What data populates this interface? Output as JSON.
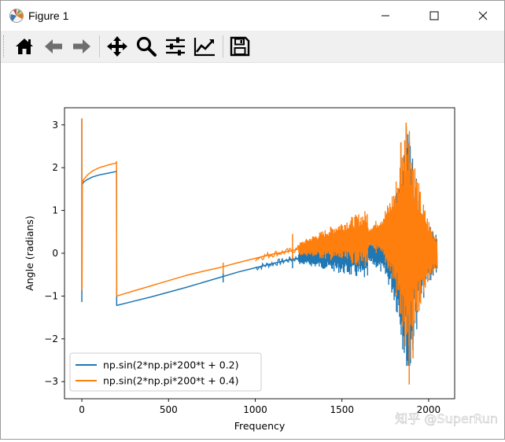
{
  "window": {
    "title": "Figure 1",
    "controls": [
      "minimize",
      "maximize",
      "close"
    ]
  },
  "toolbar": {
    "buttons": [
      {
        "name": "home",
        "icon": "home-icon"
      },
      {
        "name": "back",
        "icon": "arrow-left-icon"
      },
      {
        "name": "forward",
        "icon": "arrow-right-icon"
      },
      {
        "name": "pan",
        "icon": "move-icon"
      },
      {
        "name": "zoom",
        "icon": "magnifier-icon"
      },
      {
        "name": "configure-subplots",
        "icon": "sliders-icon"
      },
      {
        "name": "edit-axis",
        "icon": "line-chart-icon"
      },
      {
        "name": "save",
        "icon": "floppy-disk-icon"
      }
    ]
  },
  "watermark": "知乎 @SuperRun",
  "chart_data": {
    "type": "line",
    "title": "",
    "xlabel": "Frequency",
    "ylabel": "Angle (radians)",
    "xlim": [
      -100,
      2150
    ],
    "ylim": [
      -3.4,
      3.4
    ],
    "xticks": [
      0,
      500,
      1000,
      1500,
      2000
    ],
    "yticks": [
      -3,
      -2,
      -1,
      0,
      1,
      2,
      3
    ],
    "grid": false,
    "legend_position": "lower-left",
    "series": [
      {
        "name": "np.sin(2*np.pi*200*t + 0.2)",
        "color": "#1f77b4",
        "x": [
          0,
          0,
          0,
          1,
          1,
          2,
          2,
          4,
          10,
          30,
          60,
          100,
          150,
          199,
          200,
          201,
          300,
          400,
          500,
          600,
          700,
          800,
          900,
          1000,
          1100,
          1200,
          1300,
          1400,
          1500,
          1600,
          1700,
          1800,
          1900,
          2000,
          2050
        ],
        "y": [
          -1.14,
          3.14,
          1.57,
          1.58,
          -0.85,
          1.57,
          1.6,
          1.62,
          1.66,
          1.72,
          1.78,
          1.83,
          1.87,
          1.91,
          1.93,
          -1.22,
          -1.12,
          -1.02,
          -0.91,
          -0.8,
          -0.68,
          -0.56,
          -0.44,
          -0.34,
          -0.24,
          -0.15,
          -0.08,
          -0.03,
          0.0,
          0.02,
          0.04,
          0.05,
          0.03,
          0.01,
          0.0
        ]
      },
      {
        "name": "np.sin(2*np.pi*200*t + 0.4)",
        "color": "#ff7f0e",
        "x": [
          0,
          0,
          0,
          1,
          1,
          2,
          2,
          4,
          10,
          30,
          60,
          100,
          150,
          199,
          200,
          201,
          300,
          400,
          500,
          600,
          700,
          800,
          900,
          1000,
          1100,
          1200,
          1300,
          1400,
          1500,
          1600,
          1700,
          1800,
          1900,
          2000,
          2050
        ],
        "y": [
          -0.85,
          3.14,
          1.57,
          1.6,
          -0.85,
          1.57,
          1.62,
          1.66,
          1.72,
          1.82,
          1.92,
          2.0,
          2.06,
          2.11,
          2.14,
          -1.0,
          -0.88,
          -0.76,
          -0.64,
          -0.52,
          -0.42,
          -0.33,
          -0.22,
          -0.12,
          -0.02,
          0.05,
          0.15,
          0.22,
          0.3,
          0.35,
          0.4,
          0.42,
          0.3,
          0.1,
          0.0
        ]
      }
    ],
    "annotations": [
      {
        "series": 0,
        "kind": "spike",
        "x": 815,
        "ymin": -0.68,
        "ymax": -0.47
      },
      {
        "series": 0,
        "kind": "spike",
        "x": 1215,
        "ymin": -0.35,
        "ymax": -0.05
      },
      {
        "series": 1,
        "kind": "spike",
        "x": 815,
        "ymin": -0.48,
        "ymax": -0.22
      },
      {
        "series": 1,
        "kind": "spike",
        "x": 1215,
        "ymin": -0.15,
        "ymax": 0.45
      }
    ],
    "oscillation_region": {
      "series_0": {
        "x_start": 1250,
        "x_end": 2050,
        "peak_max": 3.05,
        "peak_min": -2.63,
        "center_x": 1880
      },
      "series_1": {
        "x_start": 1250,
        "x_end": 2050,
        "peak_max": 3.05,
        "peak_min": -3.07,
        "center_x": 1880
      }
    }
  }
}
